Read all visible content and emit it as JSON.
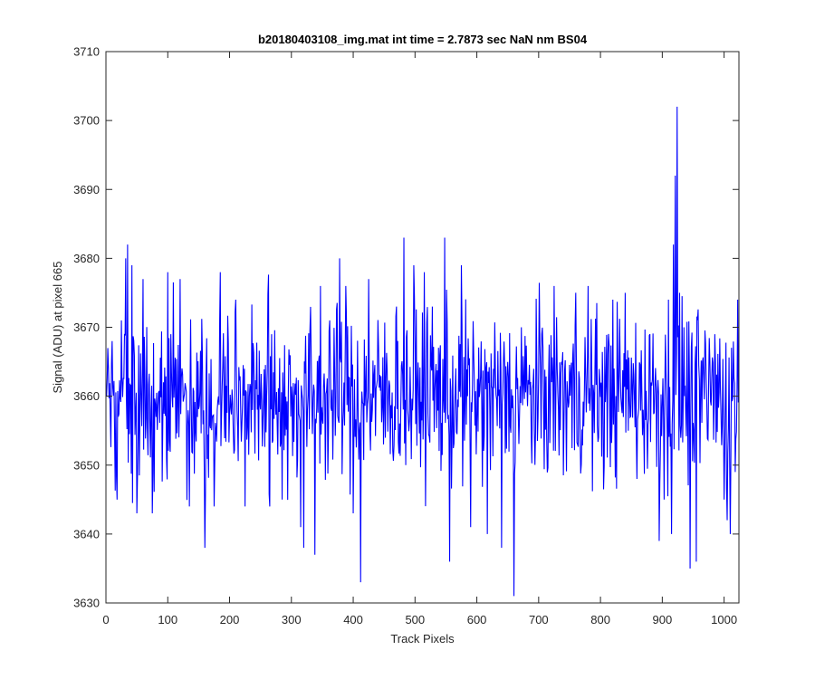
{
  "chart_data": {
    "type": "line",
    "title": "b20180403108_img.mat int time = 2.7873 sec  NaN nm BS04",
    "xlabel": "Track Pixels",
    "ylabel": "Signal (ADU) at pixel 665",
    "xlim": [
      0,
      1024
    ],
    "ylim": [
      3630,
      3710
    ],
    "xticks": [
      0,
      100,
      200,
      300,
      400,
      500,
      600,
      700,
      800,
      900,
      1000
    ],
    "yticks": [
      3630,
      3640,
      3650,
      3660,
      3670,
      3680,
      3690,
      3700,
      3710
    ],
    "grid": false,
    "legend": "none",
    "series": [
      {
        "color": "#0000ff",
        "mean": 3660,
        "noise_range": [
          3631,
          3702
        ],
        "x_range": [
          1,
          1024
        ],
        "points": [
          [
            1,
            3660
          ],
          [
            10,
            3668
          ],
          [
            18,
            3645
          ],
          [
            25,
            3671
          ],
          [
            32,
            3680
          ],
          [
            35,
            3682
          ],
          [
            42,
            3679
          ],
          [
            50,
            3643
          ],
          [
            60,
            3677
          ],
          [
            75,
            3643
          ],
          [
            100,
            3678
          ],
          [
            120,
            3677
          ],
          [
            135,
            3644
          ],
          [
            160,
            3638
          ],
          [
            175,
            3644
          ],
          [
            185,
            3678
          ],
          [
            210,
            3674
          ],
          [
            225,
            3644
          ],
          [
            265,
            3644
          ],
          [
            285,
            3645
          ],
          [
            305,
            3660
          ],
          [
            315,
            3641
          ],
          [
            320,
            3638
          ],
          [
            338,
            3637
          ],
          [
            347,
            3676
          ],
          [
            362,
            3671
          ],
          [
            378,
            3680
          ],
          [
            388,
            3676
          ],
          [
            400,
            3643
          ],
          [
            412,
            3633
          ],
          [
            425,
            3677
          ],
          [
            470,
            3673
          ],
          [
            482,
            3683
          ],
          [
            498,
            3679
          ],
          [
            515,
            3678
          ],
          [
            528,
            3673
          ],
          [
            548,
            3683
          ],
          [
            556,
            3636
          ],
          [
            575,
            3679
          ],
          [
            590,
            3641
          ],
          [
            617,
            3640
          ],
          [
            640,
            3638
          ],
          [
            660,
            3631
          ],
          [
            672,
            3670
          ],
          [
            705,
            3669
          ],
          [
            725,
            3676
          ],
          [
            760,
            3675
          ],
          [
            780,
            3676
          ],
          [
            820,
            3674
          ],
          [
            840,
            3675
          ],
          [
            880,
            3669
          ],
          [
            895,
            3639
          ],
          [
            903,
            3645
          ],
          [
            910,
            3674
          ],
          [
            915,
            3640
          ],
          [
            918,
            3682
          ],
          [
            921,
            3692
          ],
          [
            924,
            3702
          ],
          [
            928,
            3675
          ],
          [
            935,
            3670
          ],
          [
            945,
            3635
          ],
          [
            955,
            3636
          ],
          [
            965,
            3665
          ],
          [
            985,
            3669
          ],
          [
            1000,
            3645
          ],
          [
            1005,
            3642
          ],
          [
            1010,
            3640
          ],
          [
            1018,
            3649
          ],
          [
            1022,
            3674
          ],
          [
            1024,
            3660
          ]
        ]
      }
    ]
  }
}
